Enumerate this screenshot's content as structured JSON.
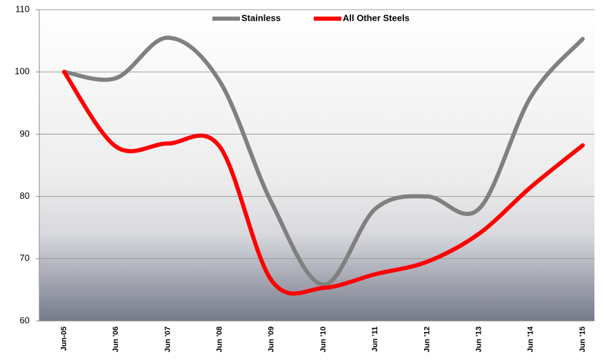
{
  "chart_data": {
    "type": "line",
    "categories": [
      "Jun-05",
      "Jun '06",
      "Jun '07",
      "Jun '08",
      "Jun '09",
      "Jun '10",
      "Jun '11",
      "Jun '12",
      "Jun '13",
      "Jun '14",
      "Jun '15"
    ],
    "series": [
      {
        "name": "Stainless",
        "color": "#808080",
        "values": [
          100,
          99,
          105.5,
          98.5,
          79,
          65.8,
          78,
          80,
          78,
          96,
          105.3
        ]
      },
      {
        "name": "All Other Steels",
        "color": "#ff0000",
        "values": [
          100,
          88,
          88.5,
          88,
          66.5,
          65.3,
          67.5,
          69.5,
          74,
          81.5,
          88.2
        ]
      }
    ],
    "ylim": [
      60,
      110
    ],
    "yticks": [
      60,
      70,
      80,
      90,
      100,
      110
    ],
    "grid": true,
    "legend": "top"
  }
}
